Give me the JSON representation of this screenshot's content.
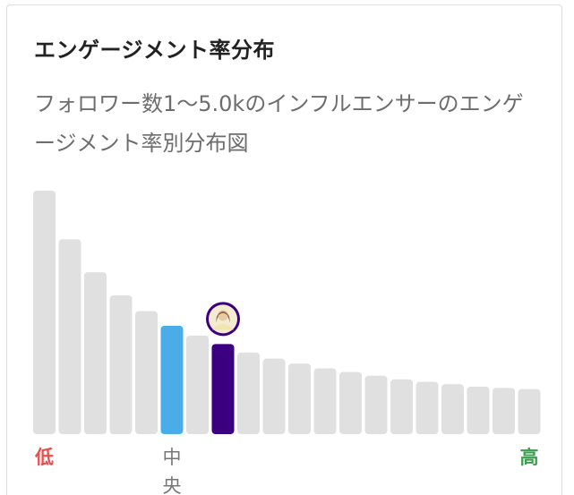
{
  "card": {
    "title": "エンゲージメント率分布",
    "subtitle": "フォロワー数1～5.0kのインフルエンサーのエンゲージメント率別分布図"
  },
  "chart_data": {
    "type": "bar",
    "title": "エンゲージメント率分布",
    "subtitle": "フォロワー数1～5.0kのインフルエンサーのエンゲージメント率別分布図",
    "ylim": [
      0,
      100
    ],
    "grid": false,
    "values": [
      100,
      80,
      66.5,
      57,
      50.5,
      44.5,
      40.5,
      37,
      33.5,
      31,
      29,
      27,
      25.5,
      24,
      22.5,
      21.5,
      20.5,
      19.5,
      19,
      18.5
    ],
    "median_index": 5,
    "highlight_index": 7,
    "labels": {
      "low": "低",
      "median": "中央",
      "high": "高"
    },
    "colors": {
      "default": "#e0e0e0",
      "median": "#4aadea",
      "highlight": "#3b007f",
      "low_label": "#e0514f",
      "median_label": "#777777",
      "high_label": "#3aa050"
    },
    "avatar_icon": "avatar-icon"
  }
}
